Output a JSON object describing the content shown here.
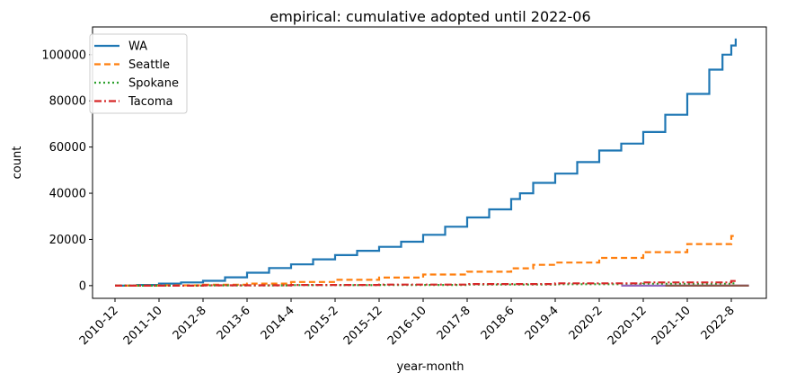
{
  "chart_data": {
    "type": "line",
    "title": "empirical: cumulative adopted until 2022-06",
    "xlabel": "year-month",
    "ylabel": "count",
    "categories": [
      "2010-12",
      "2011-10",
      "2012-8",
      "2013-6",
      "2014-4",
      "2015-2",
      "2015-12",
      "2016-10",
      "2017-8",
      "2018-6",
      "2019-4",
      "2020-2",
      "2020-12",
      "2021-10",
      "2022-8"
    ],
    "ylim": [
      -5500,
      112000
    ],
    "yticks": [
      0,
      20000,
      40000,
      60000,
      80000,
      100000
    ],
    "grid": false,
    "legend_position": "top-left",
    "series": [
      {
        "name": "WA",
        "color": "#1f77b4",
        "dash": "solid",
        "points": [
          [
            0,
            0
          ],
          [
            0.5,
            300
          ],
          [
            1,
            900
          ],
          [
            1.5,
            1400
          ],
          [
            2,
            2100
          ],
          [
            2.5,
            3600
          ],
          [
            3,
            5600
          ],
          [
            3.5,
            7600
          ],
          [
            4,
            9200
          ],
          [
            4.5,
            11400
          ],
          [
            5,
            13200
          ],
          [
            5.5,
            15100
          ],
          [
            6,
            16800
          ],
          [
            6.5,
            19000
          ],
          [
            7,
            22000
          ],
          [
            7.5,
            25500
          ],
          [
            8,
            29500
          ],
          [
            8.5,
            33000
          ],
          [
            9,
            37500
          ],
          [
            9.2,
            40000
          ],
          [
            9.5,
            44500
          ],
          [
            10,
            48500
          ],
          [
            10.5,
            53500
          ],
          [
            11,
            58500
          ],
          [
            11.5,
            61500
          ],
          [
            12,
            66500
          ],
          [
            12.5,
            74000
          ],
          [
            13,
            83000
          ],
          [
            13.5,
            93500
          ],
          [
            13.8,
            100000
          ],
          [
            14.0,
            104000
          ],
          [
            14.1,
            107000
          ]
        ]
      },
      {
        "name": "Seattle",
        "color": "#ff7f0e",
        "dash": "dashed",
        "points": [
          [
            0,
            0
          ],
          [
            1,
            150
          ],
          [
            2,
            400
          ],
          [
            3,
            900
          ],
          [
            4,
            1600
          ],
          [
            5,
            2500
          ],
          [
            6,
            3500
          ],
          [
            7,
            4800
          ],
          [
            8,
            6000
          ],
          [
            9,
            7500
          ],
          [
            9.5,
            9000
          ],
          [
            10,
            10000
          ],
          [
            11,
            12000
          ],
          [
            12,
            14500
          ],
          [
            13,
            18000
          ],
          [
            14,
            21500
          ],
          [
            14.1,
            22000
          ]
        ]
      },
      {
        "name": "Spokane",
        "color": "#2ca02c",
        "dash": "dotted",
        "points": [
          [
            0,
            0
          ],
          [
            2,
            100
          ],
          [
            4,
            200
          ],
          [
            6,
            300
          ],
          [
            8,
            450
          ],
          [
            10,
            600
          ],
          [
            12,
            800
          ],
          [
            14,
            1000
          ],
          [
            14.1,
            1050
          ]
        ]
      },
      {
        "name": "Tacoma",
        "color": "#d62728",
        "dash": "dashdot",
        "points": [
          [
            0,
            0
          ],
          [
            2,
            150
          ],
          [
            4,
            300
          ],
          [
            6,
            450
          ],
          [
            8,
            700
          ],
          [
            10,
            1000
          ],
          [
            12,
            1400
          ],
          [
            14,
            2000
          ],
          [
            14.1,
            2100
          ]
        ]
      },
      {
        "color": "#9467bd",
        "dash": "solid",
        "points": [
          [
            11.5,
            0
          ],
          [
            14.4,
            0
          ]
        ]
      },
      {
        "color": "#8c564b",
        "dash": "solid",
        "points": [
          [
            12.5,
            0
          ],
          [
            14.4,
            0
          ]
        ]
      }
    ]
  }
}
